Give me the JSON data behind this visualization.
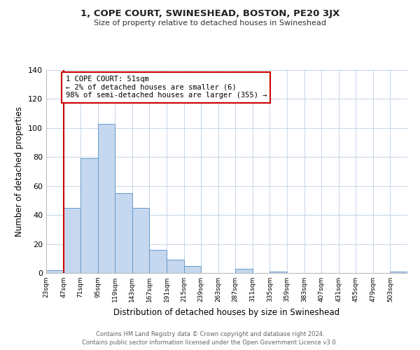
{
  "title": "1, COPE COURT, SWINESHEAD, BOSTON, PE20 3JX",
  "subtitle": "Size of property relative to detached houses in Swineshead",
  "xlabel": "Distribution of detached houses by size in Swineshead",
  "ylabel": "Number of detached properties",
  "bin_labels": [
    "23sqm",
    "47sqm",
    "71sqm",
    "95sqm",
    "119sqm",
    "143sqm",
    "167sqm",
    "191sqm",
    "215sqm",
    "239sqm",
    "263sqm",
    "287sqm",
    "311sqm",
    "335sqm",
    "359sqm",
    "383sqm",
    "407sqm",
    "431sqm",
    "455sqm",
    "479sqm",
    "503sqm"
  ],
  "bar_values": [
    2,
    45,
    79,
    103,
    55,
    45,
    16,
    9,
    5,
    0,
    0,
    3,
    0,
    1,
    0,
    0,
    0,
    0,
    0,
    0,
    1
  ],
  "bar_color": "#c5d8ef",
  "bar_edgecolor": "#6699cc",
  "ylim": [
    0,
    140
  ],
  "yticks": [
    0,
    20,
    40,
    60,
    80,
    100,
    120,
    140
  ],
  "property_line_color": "#cc0000",
  "annotation_text": "1 COPE COURT: 51sqm\n← 2% of detached houses are smaller (6)\n98% of semi-detached houses are larger (355) →",
  "annotation_box_color": "#ffffff",
  "annotation_box_edgecolor": "#cc0000",
  "footer_line1": "Contains HM Land Registry data © Crown copyright and database right 2024.",
  "footer_line2": "Contains public sector information licensed under the Open Government Licence v3.0.",
  "bg_color": "#ffffff",
  "grid_color": "#c5d5e8"
}
